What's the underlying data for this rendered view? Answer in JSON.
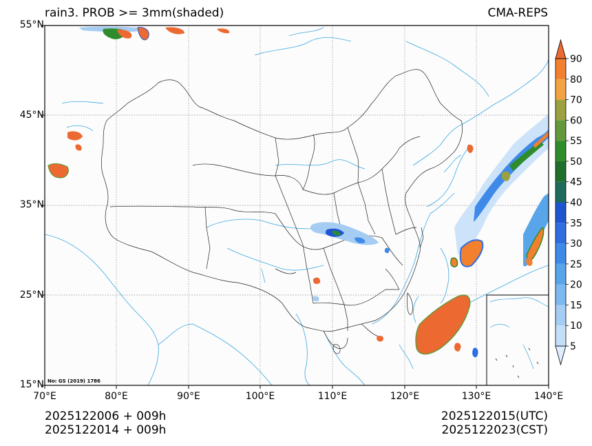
{
  "header": {
    "title_left": "rain3. PROB >= 3mm(shaded)",
    "title_right": "CMA-REPS"
  },
  "map": {
    "lat_labels": [
      "55°N",
      "45°N",
      "35°N",
      "25°N",
      "15°N"
    ],
    "lon_labels": [
      "70°E",
      "80°E",
      "90°E",
      "100°E",
      "110°E",
      "120°E",
      "130°E",
      "140°E"
    ],
    "map_note": "No: GS (2019) 1786",
    "extent": {
      "lon": [
        70,
        140
      ],
      "lat": [
        15,
        55
      ]
    }
  },
  "colorbar": {
    "levels": [
      "5",
      "10",
      "15",
      "20",
      "25",
      "30",
      "35",
      "40",
      "45",
      "50",
      "55",
      "60",
      "70",
      "80",
      "90"
    ],
    "colors": [
      "#ddeeff",
      "#c4def8",
      "#a5ccf2",
      "#7db9ee",
      "#58a5ea",
      "#3f8ae8",
      "#2e6ee0",
      "#1d56cf",
      "#1e6b5c",
      "#1f6e2a",
      "#2f8c2b",
      "#63993a",
      "#9ba041",
      "#f5a342",
      "#f2802e",
      "#ec6a32"
    ]
  },
  "footer": {
    "init_utc": "2025122006  +  009h",
    "init_cst": "2025122014  +  009h",
    "valid_utc": "2025122015(UTC)",
    "valid_cst": "2025122023(CST)"
  }
}
